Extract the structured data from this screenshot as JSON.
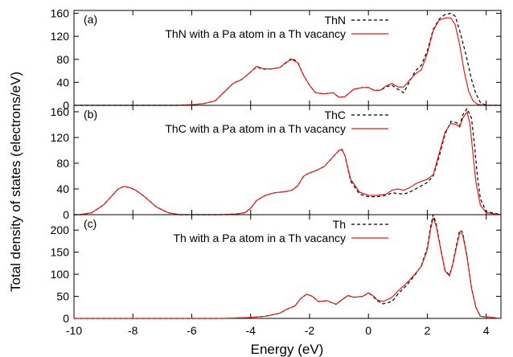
{
  "chart_data": {
    "type": "line",
    "xlabel": "Energy (eV)",
    "ylabel": "Total density of states (electrons/eV)",
    "xlim": [
      -10,
      4.5
    ],
    "xticks": [
      -10,
      -8,
      -6,
      -4,
      -2,
      0,
      2,
      4
    ],
    "grid": false,
    "legend_position": "top-right",
    "series_colors": [
      "#000000",
      "#e41a1c"
    ],
    "panels": [
      {
        "label": "(a)",
        "ylim": [
          0,
          165
        ],
        "yticks": [
          0,
          40,
          80,
          120,
          160
        ],
        "series": [
          {
            "name": "ThN",
            "style": "dashed",
            "x": [
              -10,
              -6.5,
              -6.0,
              -5.6,
              -5.2,
              -5.0,
              -4.6,
              -4.3,
              -4.0,
              -3.8,
              -3.6,
              -3.3,
              -3.0,
              -2.8,
              -2.6,
              -2.4,
              -2.2,
              -2.0,
              -1.8,
              -1.5,
              -1.2,
              -1.0,
              -0.8,
              -0.5,
              -0.2,
              0.0,
              0.2,
              0.4,
              0.6,
              0.8,
              1.0,
              1.2,
              1.4,
              1.6,
              1.8,
              2.0,
              2.2,
              2.4,
              2.6,
              2.8,
              2.95,
              3.1,
              3.3,
              3.5,
              3.65,
              3.8,
              4.0,
              4.5
            ],
            "y": [
              0,
              0,
              1,
              3,
              8,
              18,
              38,
              45,
              58,
              67,
              63,
              63,
              66,
              74,
              82,
              75,
              52,
              35,
              22,
              20,
              22,
              14,
              15,
              28,
              31,
              31,
              26,
              26,
              32,
              35,
              28,
              22,
              42,
              60,
              70,
              95,
              132,
              150,
              158,
              160,
              155,
              130,
              90,
              45,
              20,
              5,
              0,
              0
            ]
          },
          {
            "name": "ThN with a Pa atom in a Th vacancy",
            "style": "solid",
            "x": [
              -10,
              -6.5,
              -6.0,
              -5.6,
              -5.2,
              -5.0,
              -4.6,
              -4.3,
              -4.0,
              -3.8,
              -3.6,
              -3.3,
              -3.0,
              -2.8,
              -2.6,
              -2.4,
              -2.2,
              -2.0,
              -1.8,
              -1.5,
              -1.2,
              -1.0,
              -0.8,
              -0.5,
              -0.2,
              0.0,
              0.2,
              0.4,
              0.6,
              0.8,
              1.0,
              1.2,
              1.4,
              1.6,
              1.8,
              2.0,
              2.2,
              2.4,
              2.6,
              2.8,
              2.95,
              3.1,
              3.25,
              3.4,
              3.55,
              3.7,
              3.9,
              4.5
            ],
            "y": [
              0,
              0,
              1,
              3,
              8,
              18,
              38,
              45,
              58,
              68,
              64,
              63,
              66,
              75,
              80,
              74,
              52,
              35,
              22,
              20,
              22,
              14,
              15,
              28,
              31,
              31,
              26,
              26,
              34,
              38,
              32,
              32,
              44,
              55,
              62,
              90,
              130,
              148,
              152,
              152,
              140,
              105,
              60,
              25,
              8,
              2,
              0,
              0
            ]
          }
        ]
      },
      {
        "label": "(b)",
        "ylim": [
          0,
          170
        ],
        "yticks": [
          0,
          40,
          80,
          120,
          160
        ],
        "series": [
          {
            "name": "ThC",
            "style": "dashed",
            "x": [
              -10,
              -9.8,
              -9.4,
              -9.0,
              -8.7,
              -8.5,
              -8.3,
              -8.1,
              -7.9,
              -7.6,
              -7.2,
              -6.8,
              -6.4,
              -6.0,
              -5.0,
              -4.5,
              -4.2,
              -4.0,
              -3.8,
              -3.5,
              -3.2,
              -2.8,
              -2.6,
              -2.4,
              -2.2,
              -2.0,
              -1.8,
              -1.5,
              -1.2,
              -1.0,
              -0.9,
              -0.8,
              -0.6,
              -0.3,
              0.0,
              0.3,
              0.6,
              0.8,
              1.0,
              1.2,
              1.4,
              1.6,
              1.8,
              2.0,
              2.2,
              2.4,
              2.6,
              2.8,
              3.0,
              3.1,
              3.2,
              3.35,
              3.5,
              3.6,
              3.7,
              3.8,
              4.0,
              4.5
            ],
            "y": [
              0,
              0,
              3,
              15,
              30,
              40,
              44,
              42,
              38,
              28,
              12,
              3,
              0,
              0,
              0,
              1,
              3,
              10,
              22,
              30,
              34,
              36,
              38,
              45,
              60,
              65,
              68,
              75,
              90,
              100,
              102,
              92,
              52,
              32,
              28,
              28,
              30,
              34,
              33,
              32,
              35,
              40,
              45,
              50,
              60,
              90,
              125,
              145,
              143,
              138,
              155,
              165,
              150,
              110,
              60,
              25,
              5,
              0
            ]
          },
          {
            "name": "ThC with a Pa atom in a Th vacancy",
            "style": "solid",
            "x": [
              -10,
              -9.8,
              -9.4,
              -9.0,
              -8.7,
              -8.5,
              -8.3,
              -8.1,
              -7.9,
              -7.6,
              -7.2,
              -6.8,
              -6.4,
              -6.0,
              -5.0,
              -4.5,
              -4.2,
              -4.0,
              -3.8,
              -3.5,
              -3.2,
              -2.8,
              -2.6,
              -2.4,
              -2.2,
              -2.0,
              -1.8,
              -1.5,
              -1.2,
              -1.0,
              -0.9,
              -0.8,
              -0.6,
              -0.3,
              0.0,
              0.3,
              0.6,
              0.8,
              1.0,
              1.2,
              1.4,
              1.6,
              1.8,
              2.0,
              2.2,
              2.4,
              2.6,
              2.8,
              3.0,
              3.1,
              3.2,
              3.35,
              3.45,
              3.55,
              3.65,
              3.8,
              4.0,
              4.5
            ],
            "y": [
              0,
              0,
              3,
              15,
              30,
              40,
              44,
              42,
              38,
              28,
              12,
              3,
              0,
              0,
              0,
              1,
              3,
              10,
              22,
              30,
              34,
              36,
              38,
              45,
              60,
              65,
              68,
              75,
              90,
              100,
              101,
              92,
              55,
              35,
              30,
              30,
              32,
              38,
              40,
              38,
              42,
              48,
              52,
              55,
              62,
              95,
              128,
              142,
              140,
              136,
              150,
              160,
              140,
              95,
              50,
              15,
              3,
              0
            ]
          }
        ]
      },
      {
        "label": "(c)",
        "ylim": [
          0,
          235
        ],
        "yticks": [
          0,
          50,
          100,
          150,
          200
        ],
        "series": [
          {
            "name": "Th",
            "style": "dashed",
            "x": [
              -10,
              -5.0,
              -4.0,
              -3.5,
              -3.0,
              -2.8,
              -2.5,
              -2.3,
              -2.1,
              -1.9,
              -1.7,
              -1.4,
              -1.1,
              -0.9,
              -0.7,
              -0.5,
              -0.2,
              0.0,
              0.15,
              0.3,
              0.5,
              0.8,
              1.0,
              1.3,
              1.6,
              1.8,
              2.0,
              2.1,
              2.2,
              2.3,
              2.45,
              2.6,
              2.75,
              2.85,
              3.0,
              3.1,
              3.2,
              3.35,
              3.5,
              3.65,
              3.8,
              4.5
            ],
            "y": [
              0,
              0,
              2,
              5,
              12,
              20,
              28,
              45,
              55,
              50,
              38,
              40,
              32,
              42,
              52,
              48,
              50,
              58,
              50,
              40,
              33,
              38,
              55,
              75,
              100,
              120,
              160,
              205,
              235,
              215,
              160,
              110,
              98,
              120,
              170,
              200,
              195,
              140,
              70,
              25,
              5,
              0
            ]
          },
          {
            "name": "Th with a Pa  atom in a Th vacancy",
            "style": "solid",
            "x": [
              -10,
              -5.0,
              -4.0,
              -3.5,
              -3.0,
              -2.8,
              -2.5,
              -2.3,
              -2.1,
              -1.9,
              -1.7,
              -1.4,
              -1.1,
              -0.9,
              -0.7,
              -0.5,
              -0.2,
              0.0,
              0.15,
              0.3,
              0.5,
              0.8,
              1.0,
              1.3,
              1.6,
              1.8,
              2.0,
              2.1,
              2.2,
              2.3,
              2.45,
              2.6,
              2.75,
              2.85,
              3.0,
              3.1,
              3.2,
              3.35,
              3.5,
              3.65,
              3.8,
              4.5
            ],
            "y": [
              0,
              0,
              2,
              5,
              12,
              20,
              28,
              45,
              55,
              50,
              38,
              40,
              32,
              42,
              52,
              48,
              50,
              58,
              52,
              42,
              38,
              48,
              62,
              80,
              102,
              118,
              155,
              198,
              228,
              210,
              158,
              108,
              96,
              118,
              165,
              195,
              190,
              138,
              68,
              25,
              5,
              0
            ]
          }
        ]
      }
    ]
  }
}
